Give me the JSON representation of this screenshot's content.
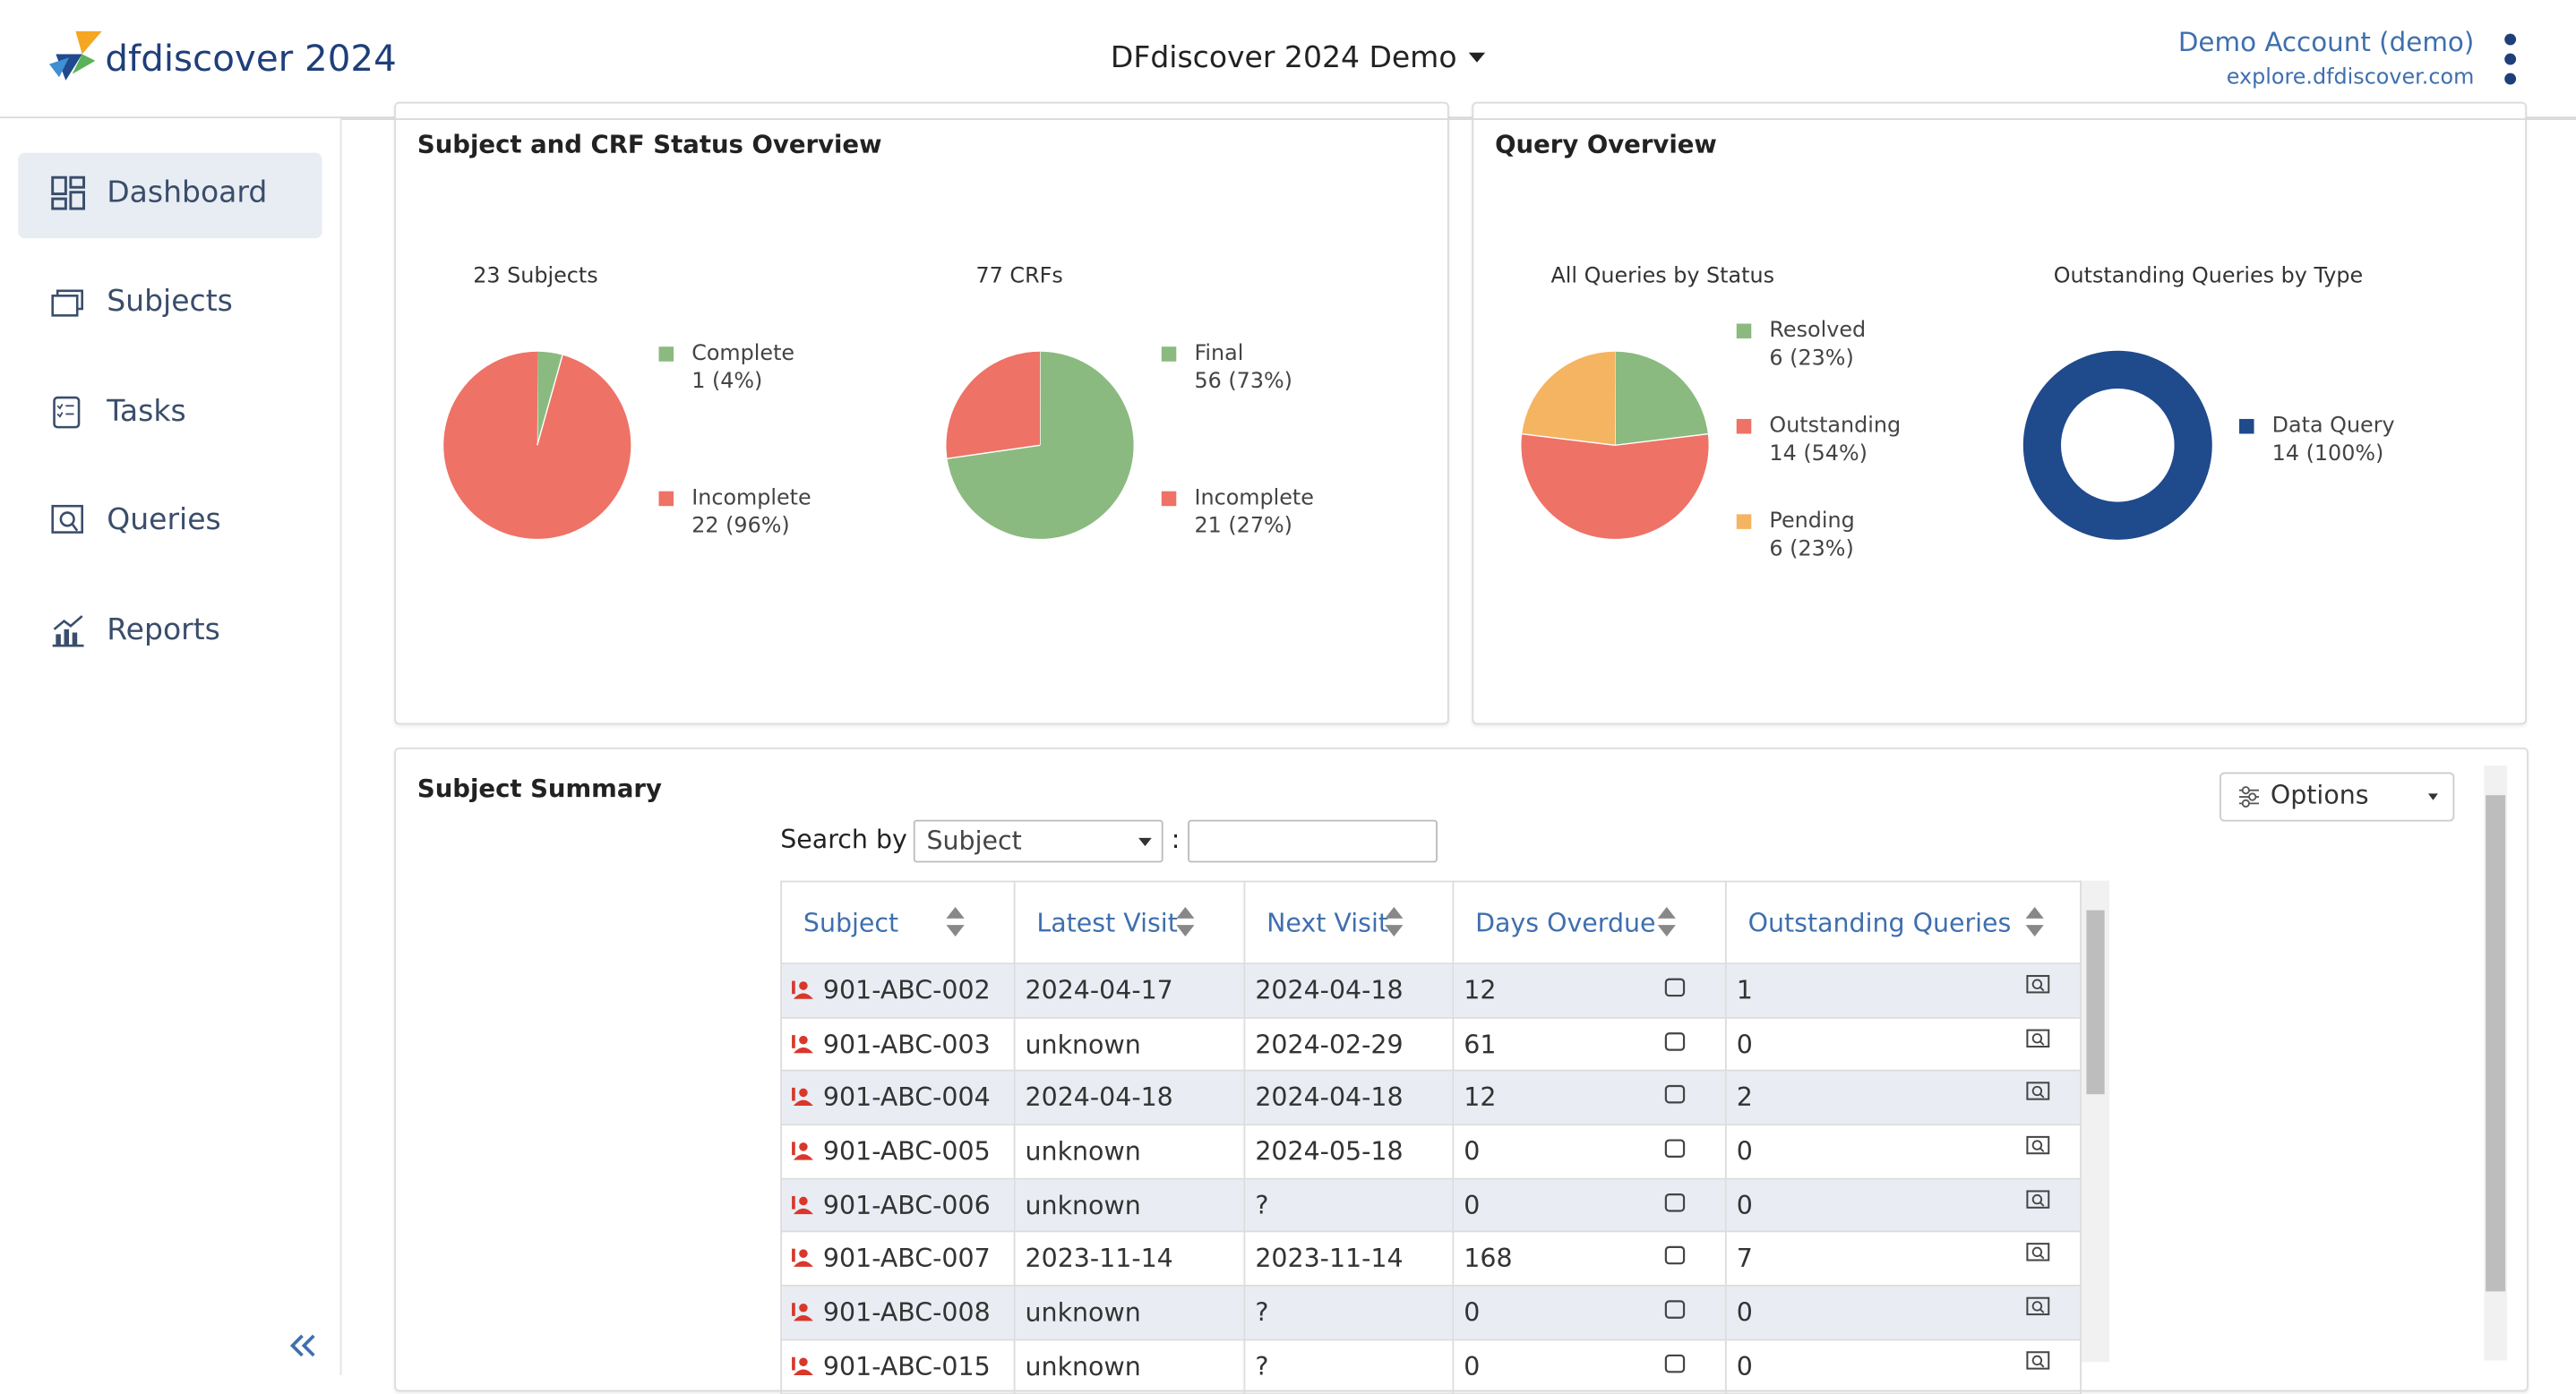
{
  "header": {
    "logo": "dfdiscover 2024",
    "study": "DFdiscover 2024 Demo",
    "account": "Demo Account (demo)",
    "server": "explore.dfdiscover.com"
  },
  "sidebar": {
    "items": [
      "Dashboard",
      "Subjects",
      "Tasks",
      "Queries",
      "Reports"
    ]
  },
  "panels": [
    {
      "title": "Subject and CRF Status Overview",
      "charts": [
        {
          "type": "pie",
          "title": "23 Subjects",
          "categories": [
            "Complete",
            "Incomplete"
          ],
          "values": [
            1,
            22
          ],
          "value_labels": [
            "1 (4%)",
            "22 (96%)"
          ],
          "colors": [
            "#8aba7f",
            "#ee7266"
          ]
        },
        {
          "type": "pie",
          "title": "77 CRFs",
          "categories": [
            "Final",
            "Incomplete"
          ],
          "values": [
            56,
            21
          ],
          "value_labels": [
            "56 (73%)",
            "21 (27%)"
          ],
          "colors": [
            "#8aba7f",
            "#ee7266"
          ]
        }
      ]
    },
    {
      "title": "Query Overview",
      "charts": [
        {
          "type": "pie",
          "title": "All Queries by Status",
          "categories": [
            "Resolved",
            "Outstanding",
            "Pending"
          ],
          "values": [
            6,
            14,
            6
          ],
          "value_labels": [
            "6 (23%)",
            "14 (54%)",
            "6 (23%)"
          ],
          "colors": [
            "#8aba7f",
            "#ee7266",
            "#f5b461"
          ]
        },
        {
          "type": "donut",
          "title": "Outstanding Queries by Type",
          "categories": [
            "Data Query"
          ],
          "values": [
            14
          ],
          "value_labels": [
            "14 (100%)"
          ],
          "colors": [
            "#1f4a8c"
          ]
        }
      ]
    }
  ],
  "summary": {
    "title": "Subject Summary",
    "options": "Options",
    "search_label": "Search by",
    "search_field": "Subject",
    "search_separator": ":",
    "columns": [
      "Subject",
      "Latest Visit",
      "Next Visit",
      "Days Overdue",
      "Outstanding Queries"
    ],
    "rows": [
      [
        "901-ABC-002",
        "2024-04-17",
        "2024-04-18",
        12,
        1
      ],
      [
        "901-ABC-003",
        "unknown",
        "2024-02-29",
        61,
        0
      ],
      [
        "901-ABC-004",
        "2024-04-18",
        "2024-04-18",
        12,
        2
      ],
      [
        "901-ABC-005",
        "unknown",
        "2024-05-18",
        0,
        0
      ],
      [
        "901-ABC-006",
        "unknown",
        "?",
        0,
        0
      ],
      [
        "901-ABC-007",
        "2023-11-14",
        "2023-11-14",
        168,
        7
      ],
      [
        "901-ABC-008",
        "unknown",
        "?",
        0,
        0
      ],
      [
        "901-ABC-015",
        "unknown",
        "?",
        0,
        0
      ]
    ]
  }
}
